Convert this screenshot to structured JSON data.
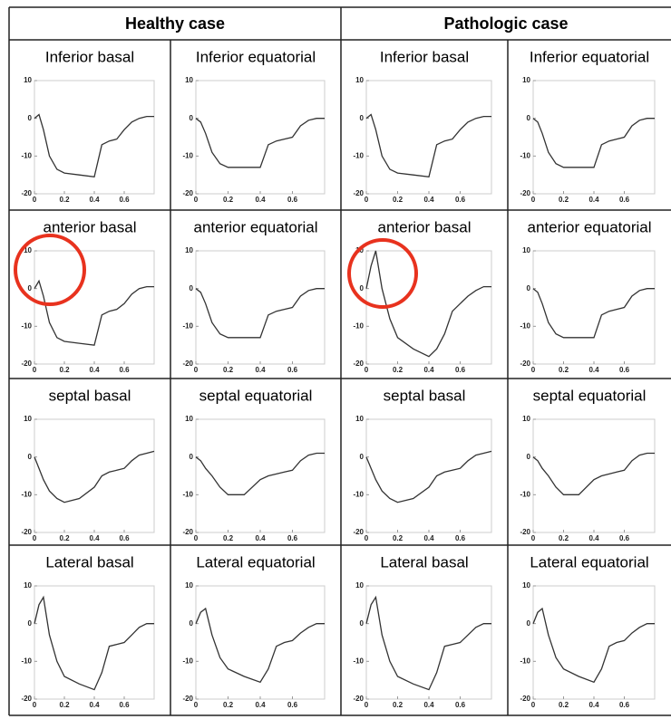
{
  "columns": [
    "Healthy case",
    "Pathologic case"
  ],
  "chart_data": [
    {
      "type": "line",
      "title": "Inferior basal",
      "x": [
        0,
        0.03,
        0.06,
        0.1,
        0.15,
        0.2,
        0.3,
        0.4,
        0.45,
        0.5,
        0.55,
        0.6,
        0.65,
        0.7,
        0.75,
        0.8
      ],
      "values": [
        0,
        1,
        -3,
        -10,
        -13.5,
        -14.5,
        -15,
        -15.5,
        -7,
        -6,
        -5.5,
        -3,
        -1,
        0,
        0.5,
        0.5
      ],
      "xlim": [
        0,
        0.8
      ],
      "ylim": [
        -20,
        10
      ],
      "xticks": [
        0,
        0.2,
        0.4,
        0.6
      ],
      "yticks": [
        -20,
        -10,
        0,
        10
      ],
      "color": "#333"
    },
    {
      "type": "line",
      "title": "Inferior equatorial",
      "x": [
        0,
        0.03,
        0.06,
        0.1,
        0.15,
        0.2,
        0.3,
        0.4,
        0.45,
        0.5,
        0.55,
        0.6,
        0.65,
        0.7,
        0.75,
        0.8
      ],
      "values": [
        0,
        -1,
        -4,
        -9,
        -12,
        -13,
        -13,
        -13,
        -7,
        -6,
        -5.5,
        -5,
        -2,
        -0.5,
        0,
        0
      ],
      "xlim": [
        0,
        0.8
      ],
      "ylim": [
        -20,
        10
      ],
      "xticks": [
        0,
        0.2,
        0.4,
        0.6
      ],
      "yticks": [
        -20,
        -10,
        0,
        10
      ],
      "color": "#333"
    },
    {
      "type": "line",
      "title": "Inferior basal",
      "x": [
        0,
        0.03,
        0.06,
        0.1,
        0.15,
        0.2,
        0.3,
        0.4,
        0.45,
        0.5,
        0.55,
        0.6,
        0.65,
        0.7,
        0.75,
        0.8
      ],
      "values": [
        0,
        1,
        -3,
        -10,
        -13.5,
        -14.5,
        -15,
        -15.5,
        -7,
        -6,
        -5.5,
        -3,
        -1,
        0,
        0.5,
        0.5
      ],
      "xlim": [
        0,
        0.8
      ],
      "ylim": [
        -20,
        10
      ],
      "xticks": [
        0,
        0.2,
        0.4,
        0.6
      ],
      "yticks": [
        -20,
        -10,
        0,
        10
      ],
      "color": "#333"
    },
    {
      "type": "line",
      "title": "Inferior equatorial",
      "x": [
        0,
        0.03,
        0.06,
        0.1,
        0.15,
        0.2,
        0.3,
        0.4,
        0.45,
        0.5,
        0.55,
        0.6,
        0.65,
        0.7,
        0.75,
        0.8
      ],
      "values": [
        0,
        -1,
        -4,
        -9,
        -12,
        -13,
        -13,
        -13,
        -7,
        -6,
        -5.5,
        -5,
        -2,
        -0.5,
        0,
        0
      ],
      "xlim": [
        0,
        0.8
      ],
      "ylim": [
        -20,
        10
      ],
      "xticks": [
        0,
        0.2,
        0.4,
        0.6
      ],
      "yticks": [
        -20,
        -10,
        0,
        10
      ],
      "color": "#333"
    },
    {
      "type": "line",
      "title": "anterior basal",
      "x": [
        0,
        0.03,
        0.06,
        0.1,
        0.15,
        0.2,
        0.3,
        0.4,
        0.45,
        0.5,
        0.55,
        0.6,
        0.65,
        0.7,
        0.75,
        0.8
      ],
      "values": [
        0,
        2,
        -2,
        -9,
        -13,
        -14,
        -14.5,
        -15,
        -7,
        -6,
        -5.5,
        -4,
        -1.5,
        0,
        0.5,
        0.5
      ],
      "xlim": [
        0,
        0.8
      ],
      "ylim": [
        -20,
        10
      ],
      "xticks": [
        0,
        0.2,
        0.4,
        0.6
      ],
      "yticks": [
        -20,
        -10,
        0,
        10
      ],
      "color": "#333"
    },
    {
      "type": "line",
      "title": "anterior equatorial",
      "x": [
        0,
        0.03,
        0.06,
        0.1,
        0.15,
        0.2,
        0.3,
        0.4,
        0.45,
        0.5,
        0.55,
        0.6,
        0.65,
        0.7,
        0.75,
        0.8
      ],
      "values": [
        0,
        -1,
        -4,
        -9,
        -12,
        -13,
        -13,
        -13,
        -7,
        -6,
        -5.5,
        -5,
        -2,
        -0.5,
        0,
        0
      ],
      "xlim": [
        0,
        0.8
      ],
      "ylim": [
        -20,
        10
      ],
      "xticks": [
        0,
        0.2,
        0.4,
        0.6
      ],
      "yticks": [
        -20,
        -10,
        0,
        10
      ],
      "color": "#333"
    },
    {
      "type": "line",
      "title": "anterior basal",
      "x": [
        0,
        0.03,
        0.06,
        0.1,
        0.15,
        0.2,
        0.3,
        0.4,
        0.45,
        0.5,
        0.55,
        0.6,
        0.65,
        0.7,
        0.75,
        0.8
      ],
      "values": [
        0,
        6,
        10,
        0,
        -8,
        -13,
        -16,
        -18,
        -16,
        -12,
        -6,
        -4,
        -2,
        -0.5,
        0.5,
        0.5
      ],
      "xlim": [
        0,
        0.8
      ],
      "ylim": [
        -20,
        10
      ],
      "xticks": [
        0,
        0.2,
        0.4,
        0.6
      ],
      "yticks": [
        -20,
        -10,
        0,
        10
      ],
      "color": "#333"
    },
    {
      "type": "line",
      "title": "anterior equatorial",
      "x": [
        0,
        0.03,
        0.06,
        0.1,
        0.15,
        0.2,
        0.3,
        0.4,
        0.45,
        0.5,
        0.55,
        0.6,
        0.65,
        0.7,
        0.75,
        0.8
      ],
      "values": [
        0,
        -1,
        -4,
        -9,
        -12,
        -13,
        -13,
        -13,
        -7,
        -6,
        -5.5,
        -5,
        -2,
        -0.5,
        0,
        0
      ],
      "xlim": [
        0,
        0.8
      ],
      "ylim": [
        -20,
        10
      ],
      "xticks": [
        0,
        0.2,
        0.4,
        0.6
      ],
      "yticks": [
        -20,
        -10,
        0,
        10
      ],
      "color": "#333"
    },
    {
      "type": "line",
      "title": "septal basal",
      "x": [
        0,
        0.03,
        0.06,
        0.1,
        0.15,
        0.2,
        0.3,
        0.4,
        0.45,
        0.5,
        0.55,
        0.6,
        0.65,
        0.7,
        0.75,
        0.8
      ],
      "values": [
        0,
        -3,
        -6,
        -9,
        -11,
        -12,
        -11,
        -8,
        -5,
        -4,
        -3.5,
        -3,
        -1,
        0.5,
        1,
        1.5
      ],
      "xlim": [
        0,
        0.8
      ],
      "ylim": [
        -20,
        10
      ],
      "xticks": [
        0,
        0.2,
        0.4,
        0.6
      ],
      "yticks": [
        -20,
        -10,
        0,
        10
      ],
      "color": "#333"
    },
    {
      "type": "line",
      "title": "septal equatorial",
      "x": [
        0,
        0.03,
        0.06,
        0.1,
        0.15,
        0.2,
        0.3,
        0.4,
        0.45,
        0.5,
        0.55,
        0.6,
        0.65,
        0.7,
        0.75,
        0.8
      ],
      "values": [
        0,
        -1,
        -3,
        -5,
        -8,
        -10,
        -10,
        -6,
        -5,
        -4.5,
        -4,
        -3.5,
        -1,
        0.5,
        1,
        1
      ],
      "xlim": [
        0,
        0.8
      ],
      "ylim": [
        -20,
        10
      ],
      "xticks": [
        0,
        0.2,
        0.4,
        0.6
      ],
      "yticks": [
        -20,
        -10,
        0,
        10
      ],
      "color": "#333"
    },
    {
      "type": "line",
      "title": "septal basal",
      "x": [
        0,
        0.03,
        0.06,
        0.1,
        0.15,
        0.2,
        0.3,
        0.4,
        0.45,
        0.5,
        0.55,
        0.6,
        0.65,
        0.7,
        0.75,
        0.8
      ],
      "values": [
        0,
        -3,
        -6,
        -9,
        -11,
        -12,
        -11,
        -8,
        -5,
        -4,
        -3.5,
        -3,
        -1,
        0.5,
        1,
        1.5
      ],
      "xlim": [
        0,
        0.8
      ],
      "ylim": [
        -20,
        10
      ],
      "xticks": [
        0,
        0.2,
        0.4,
        0.6
      ],
      "yticks": [
        -20,
        -10,
        0,
        10
      ],
      "color": "#333"
    },
    {
      "type": "line",
      "title": "septal equatorial",
      "x": [
        0,
        0.03,
        0.06,
        0.1,
        0.15,
        0.2,
        0.3,
        0.4,
        0.45,
        0.5,
        0.55,
        0.6,
        0.65,
        0.7,
        0.75,
        0.8
      ],
      "values": [
        0,
        -1,
        -3,
        -5,
        -8,
        -10,
        -10,
        -6,
        -5,
        -4.5,
        -4,
        -3.5,
        -1,
        0.5,
        1,
        1
      ],
      "xlim": [
        0,
        0.8
      ],
      "ylim": [
        -20,
        10
      ],
      "xticks": [
        0,
        0.2,
        0.4,
        0.6
      ],
      "yticks": [
        -20,
        -10,
        0,
        10
      ],
      "color": "#333"
    },
    {
      "type": "line",
      "title": "Lateral basal",
      "x": [
        0,
        0.03,
        0.06,
        0.1,
        0.15,
        0.2,
        0.3,
        0.4,
        0.45,
        0.5,
        0.55,
        0.6,
        0.65,
        0.7,
        0.75,
        0.8
      ],
      "values": [
        0,
        5,
        7,
        -3,
        -10,
        -14,
        -16,
        -17.5,
        -13,
        -6,
        -5.5,
        -5,
        -3,
        -1,
        0,
        0
      ],
      "xlim": [
        0,
        0.8
      ],
      "ylim": [
        -20,
        10
      ],
      "xticks": [
        0,
        0.2,
        0.4,
        0.6
      ],
      "yticks": [
        -20,
        -10,
        0,
        10
      ],
      "color": "#333"
    },
    {
      "type": "line",
      "title": "Lateral equatorial",
      "x": [
        0,
        0.03,
        0.06,
        0.1,
        0.15,
        0.2,
        0.3,
        0.4,
        0.45,
        0.5,
        0.55,
        0.6,
        0.65,
        0.7,
        0.75,
        0.8
      ],
      "values": [
        0,
        3,
        4,
        -3,
        -9,
        -12,
        -14,
        -15.5,
        -12,
        -6,
        -5,
        -4.5,
        -2.5,
        -1,
        0,
        0
      ],
      "xlim": [
        0,
        0.8
      ],
      "ylim": [
        -20,
        10
      ],
      "xticks": [
        0,
        0.2,
        0.4,
        0.6
      ],
      "yticks": [
        -20,
        -10,
        0,
        10
      ],
      "color": "#333"
    },
    {
      "type": "line",
      "title": "Lateral basal",
      "x": [
        0,
        0.03,
        0.06,
        0.1,
        0.15,
        0.2,
        0.3,
        0.4,
        0.45,
        0.5,
        0.55,
        0.6,
        0.65,
        0.7,
        0.75,
        0.8
      ],
      "values": [
        0,
        5,
        7,
        -3,
        -10,
        -14,
        -16,
        -17.5,
        -13,
        -6,
        -5.5,
        -5,
        -3,
        -1,
        0,
        0
      ],
      "xlim": [
        0,
        0.8
      ],
      "ylim": [
        -20,
        10
      ],
      "xticks": [
        0,
        0.2,
        0.4,
        0.6
      ],
      "yticks": [
        -20,
        -10,
        0,
        10
      ],
      "color": "#333"
    },
    {
      "type": "line",
      "title": "Lateral equatorial",
      "x": [
        0,
        0.03,
        0.06,
        0.1,
        0.15,
        0.2,
        0.3,
        0.4,
        0.45,
        0.5,
        0.55,
        0.6,
        0.65,
        0.7,
        0.75,
        0.8
      ],
      "values": [
        0,
        3,
        4,
        -3,
        -9,
        -12,
        -14,
        -15.5,
        -12,
        -6,
        -5,
        -4.5,
        -2.5,
        -1,
        0,
        0
      ],
      "xlim": [
        0,
        0.8
      ],
      "ylim": [
        -20,
        10
      ],
      "xticks": [
        0,
        0.2,
        0.4,
        0.6
      ],
      "yticks": [
        -20,
        -10,
        0,
        10
      ],
      "color": "#333"
    }
  ]
}
